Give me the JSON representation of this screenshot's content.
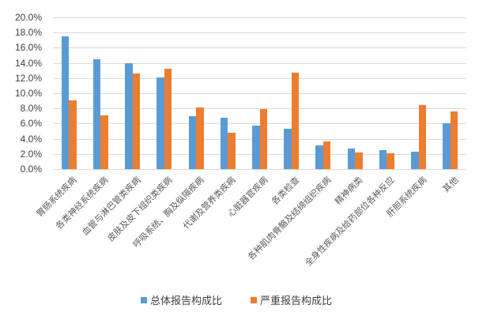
{
  "chart_data": {
    "type": "bar",
    "title": "",
    "xlabel": "",
    "ylabel": "",
    "ylim": [
      0,
      20
    ],
    "y_tick_labels": [
      "0.0%",
      "2.0%",
      "4.0%",
      "6.0%",
      "8.0%",
      "10.0%",
      "12.0%",
      "14.0%",
      "16.0%",
      "18.0%",
      "20.0%"
    ],
    "y_ticks": [
      0,
      2,
      4,
      6,
      8,
      10,
      12,
      14,
      16,
      18,
      20
    ],
    "grid": true,
    "legend_position": "bottom",
    "categories": [
      "胃肠系统疾病",
      "各类神经系统疾病",
      "血管与淋巴管类疾病",
      "皮肤及皮下组织类疾病",
      "呼吸系统、胸及纵隔疾病",
      "代谢及营养类疾病",
      "心脏器官疾病",
      "各类检查",
      "各种肌肉骨骼及结缔组织疾病",
      "精神病类",
      "全身性疾病及给药部位各种反应",
      "肝胆系统疾病",
      "其他"
    ],
    "series": [
      {
        "name": "总体报告构成比",
        "color": "#5B9BD5",
        "values": [
          17.5,
          14.5,
          14.0,
          12.1,
          7.0,
          6.8,
          5.7,
          5.3,
          3.1,
          2.7,
          2.5,
          2.3,
          6.0
        ]
      },
      {
        "name": "严重报告构成比",
        "color": "#ED7D31",
        "values": [
          9.1,
          7.1,
          12.6,
          13.2,
          8.1,
          4.8,
          7.9,
          12.7,
          3.6,
          2.2,
          2.1,
          8.4,
          7.6
        ]
      }
    ]
  }
}
